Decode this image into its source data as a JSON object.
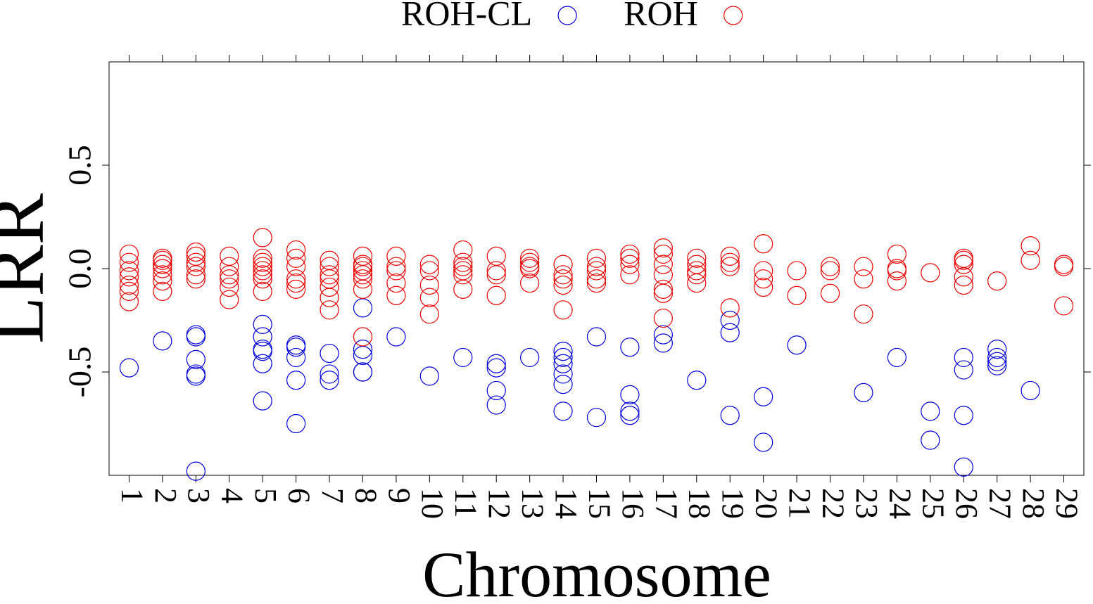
{
  "chart_data": {
    "type": "scatter",
    "x_label": "Chromosome",
    "y_label": "LRR",
    "xlim": [
      0.4,
      29.6
    ],
    "xticks": [
      1,
      2,
      3,
      4,
      5,
      6,
      7,
      8,
      9,
      10,
      11,
      12,
      13,
      14,
      15,
      16,
      17,
      18,
      19,
      20,
      21,
      22,
      23,
      24,
      25,
      26,
      27,
      28,
      29
    ],
    "ylim": [
      -1,
      1
    ],
    "yticks": [
      -0.5,
      {
        "value": 0,
        "label": "0.0"
      },
      0.5
    ],
    "grid": false,
    "legend": "top",
    "series": [
      {
        "name": "ROH-CL",
        "color": "#0000dd",
        "x": [
          1,
          2,
          3,
          3,
          3,
          3,
          3,
          3,
          5,
          5,
          5,
          5,
          5,
          5,
          6,
          6,
          6,
          6,
          6,
          7,
          7,
          7,
          8,
          8,
          8,
          8,
          8,
          9,
          10,
          11,
          12,
          12,
          12,
          12,
          13,
          14,
          14,
          14,
          14,
          14,
          14,
          15,
          15,
          16,
          16,
          16,
          16,
          17,
          17,
          18,
          19,
          19,
          19,
          20,
          20,
          21,
          23,
          24,
          25,
          25,
          26,
          26,
          26,
          26,
          27,
          27,
          27,
          27,
          28
        ],
        "values": [
          -0.48,
          -0.35,
          -0.32,
          -0.33,
          -0.44,
          -0.51,
          -0.52,
          -0.98,
          -0.27,
          -0.33,
          -0.39,
          -0.4,
          -0.46,
          -0.64,
          -0.37,
          -0.38,
          -0.43,
          -0.54,
          -0.75,
          -0.41,
          -0.51,
          -0.54,
          -0.19,
          -0.39,
          -0.42,
          -0.5,
          -0.5,
          -0.33,
          -0.52,
          -0.43,
          -0.46,
          -0.48,
          -0.59,
          -0.66,
          -0.43,
          -0.4,
          -0.43,
          -0.46,
          -0.51,
          -0.56,
          -0.69,
          -0.33,
          -0.72,
          -0.38,
          -0.61,
          -0.69,
          -0.71,
          -0.32,
          -0.36,
          -0.54,
          -0.25,
          -0.31,
          -0.71,
          -0.62,
          -0.84,
          -0.37,
          -0.6,
          -0.43,
          -0.69,
          -0.83,
          -0.43,
          -0.49,
          -0.71,
          -0.96,
          -0.39,
          -0.43,
          -0.45,
          -0.47,
          -0.59
        ]
      },
      {
        "name": "ROH",
        "color": "#ee0000",
        "x": [
          1,
          1,
          1,
          1,
          1,
          1,
          1,
          2,
          2,
          2,
          2,
          2,
          2,
          2,
          3,
          3,
          3,
          3,
          3,
          3,
          4,
          4,
          4,
          4,
          4,
          4,
          5,
          5,
          5,
          5,
          5,
          5,
          5,
          5,
          6,
          6,
          6,
          6,
          6,
          6,
          7,
          7,
          7,
          7,
          7,
          7,
          7,
          8,
          8,
          8,
          8,
          8,
          8,
          8,
          8,
          9,
          9,
          9,
          9,
          9,
          10,
          10,
          10,
          10,
          10,
          11,
          11,
          11,
          11,
          11,
          11,
          12,
          12,
          12,
          12,
          13,
          13,
          13,
          13,
          13,
          14,
          14,
          14,
          14,
          14,
          15,
          15,
          15,
          15,
          15,
          16,
          16,
          16,
          16,
          17,
          17,
          17,
          17,
          17,
          17,
          17,
          18,
          18,
          18,
          18,
          18,
          19,
          19,
          19,
          19,
          20,
          20,
          20,
          20,
          21,
          21,
          22,
          22,
          22,
          23,
          23,
          23,
          24,
          24,
          24,
          24,
          25,
          26,
          26,
          26,
          26,
          26,
          27,
          28,
          28,
          29,
          29,
          29
        ],
        "values": [
          0.07,
          0.03,
          -0.01,
          -0.04,
          -0.08,
          -0.11,
          -0.16,
          0.05,
          0.04,
          0.02,
          0.0,
          -0.03,
          -0.06,
          -0.11,
          0.08,
          0.06,
          0.03,
          0.01,
          -0.03,
          -0.05,
          0.06,
          0.01,
          -0.03,
          -0.05,
          -0.09,
          -0.15,
          0.15,
          0.05,
          0.03,
          0.01,
          -0.01,
          -0.03,
          -0.05,
          -0.11,
          0.09,
          0.05,
          0.01,
          -0.05,
          -0.07,
          -0.1,
          0.04,
          0.01,
          -0.03,
          -0.05,
          -0.09,
          -0.14,
          -0.2,
          0.06,
          0.02,
          0.01,
          -0.01,
          -0.03,
          -0.05,
          -0.1,
          -0.33,
          0.06,
          0.01,
          -0.01,
          -0.07,
          -0.13,
          0.02,
          -0.01,
          -0.08,
          -0.14,
          -0.22,
          0.09,
          0.03,
          0.01,
          -0.01,
          -0.03,
          -0.1,
          0.06,
          -0.01,
          -0.03,
          -0.13,
          0.05,
          0.03,
          0.01,
          0.0,
          -0.07,
          0.02,
          -0.03,
          -0.05,
          -0.08,
          -0.2,
          0.05,
          0.01,
          -0.01,
          -0.05,
          -0.07,
          0.07,
          0.05,
          0.02,
          -0.03,
          0.1,
          0.07,
          0.02,
          -0.03,
          -0.1,
          -0.12,
          -0.24,
          0.05,
          0.02,
          -0.01,
          -0.03,
          -0.07,
          0.06,
          0.03,
          0.01,
          -0.19,
          0.12,
          -0.01,
          -0.05,
          -0.09,
          -0.01,
          -0.13,
          0.01,
          -0.01,
          -0.12,
          0.01,
          -0.05,
          -0.22,
          0.07,
          0.0,
          -0.01,
          -0.06,
          -0.02,
          0.05,
          0.04,
          0.02,
          -0.04,
          -0.08,
          -0.06,
          0.11,
          0.04,
          0.02,
          0.01,
          -0.18
        ]
      }
    ]
  }
}
